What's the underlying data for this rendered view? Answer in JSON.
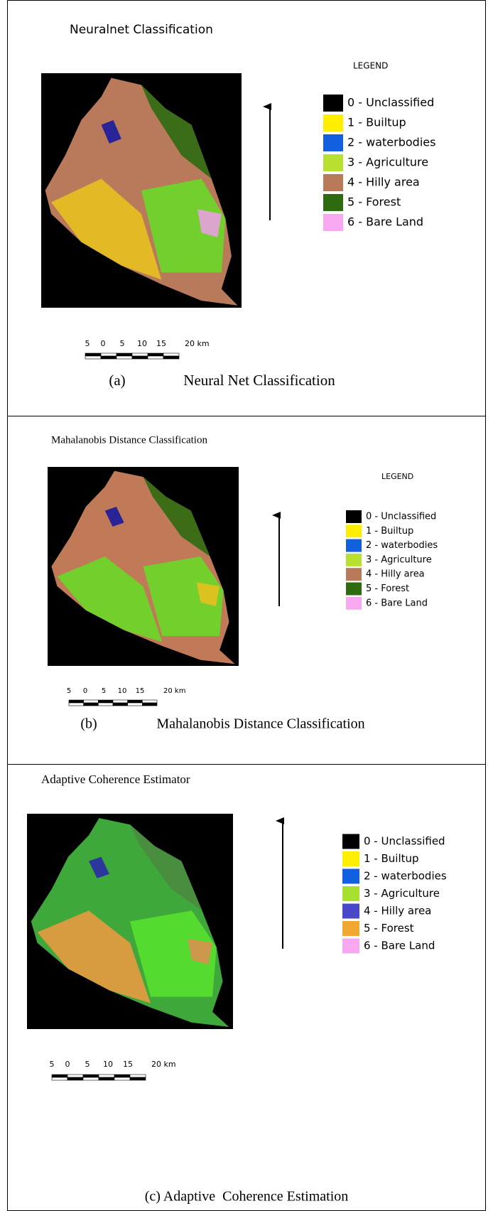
{
  "panels": [
    {
      "title": "Neuralnet Classification",
      "legend_title": "LEGEND",
      "legend": [
        {
          "label": "0 - Unclassified",
          "color": "#000000"
        },
        {
          "label": "1 - Builtup",
          "color": "#ffee00"
        },
        {
          "label": "2 - waterbodies",
          "color": "#1060e0"
        },
        {
          "label": "3 - Agriculture",
          "color": "#b8e030"
        },
        {
          "label": "4 - Hilly area",
          "color": "#b87a5a"
        },
        {
          "label": "5 - Forest",
          "color": "#2e6a10"
        },
        {
          "label": "6 - Bare Land",
          "color": "#f8a8f0"
        }
      ],
      "scale_labels": [
        "5",
        "0",
        "5",
        "10",
        "15",
        "20 km"
      ],
      "caption": {
        "label": "(a)",
        "text": "Neural Net Classification"
      }
    },
    {
      "title": "Mahalanobis Distance Classification",
      "legend_title": "LEGEND",
      "legend": [
        {
          "label": "0 - Unclassified",
          "color": "#000000"
        },
        {
          "label": "1 - Builtup",
          "color": "#ffee00"
        },
        {
          "label": "2 - waterbodies",
          "color": "#1060e0"
        },
        {
          "label": "3 - Agriculture",
          "color": "#b8e030"
        },
        {
          "label": "4 - Hilly area",
          "color": "#b87a5a"
        },
        {
          "label": "5 - Forest",
          "color": "#2e6a10"
        },
        {
          "label": "6 - Bare Land",
          "color": "#f8a8f0"
        }
      ],
      "scale_labels": [
        "5",
        "0",
        "5",
        "10",
        "15",
        "20 km"
      ],
      "caption": {
        "label": "(b)",
        "text": "Mahalanobis Distance Classification"
      }
    },
    {
      "title": "Adaptive Coherence Estimator",
      "legend": [
        {
          "label": "0 - Unclassified",
          "color": "#000000"
        },
        {
          "label": "1 - Builtup",
          "color": "#ffee00"
        },
        {
          "label": "2 - waterbodies",
          "color": "#1060e0"
        },
        {
          "label": "3 - Agriculture",
          "color": "#a8e030"
        },
        {
          "label": "4 - Hilly area",
          "color": "#4848c8"
        },
        {
          "label": "5 - Forest",
          "color": "#f0a830"
        },
        {
          "label": "6 - Bare Land",
          "color": "#f8a8f0"
        }
      ],
      "scale_labels": [
        "5",
        "0",
        "5",
        "10",
        "15",
        "20 km"
      ],
      "caption": {
        "text": "(c) Adaptive  Coherence Estimation"
      }
    }
  ]
}
